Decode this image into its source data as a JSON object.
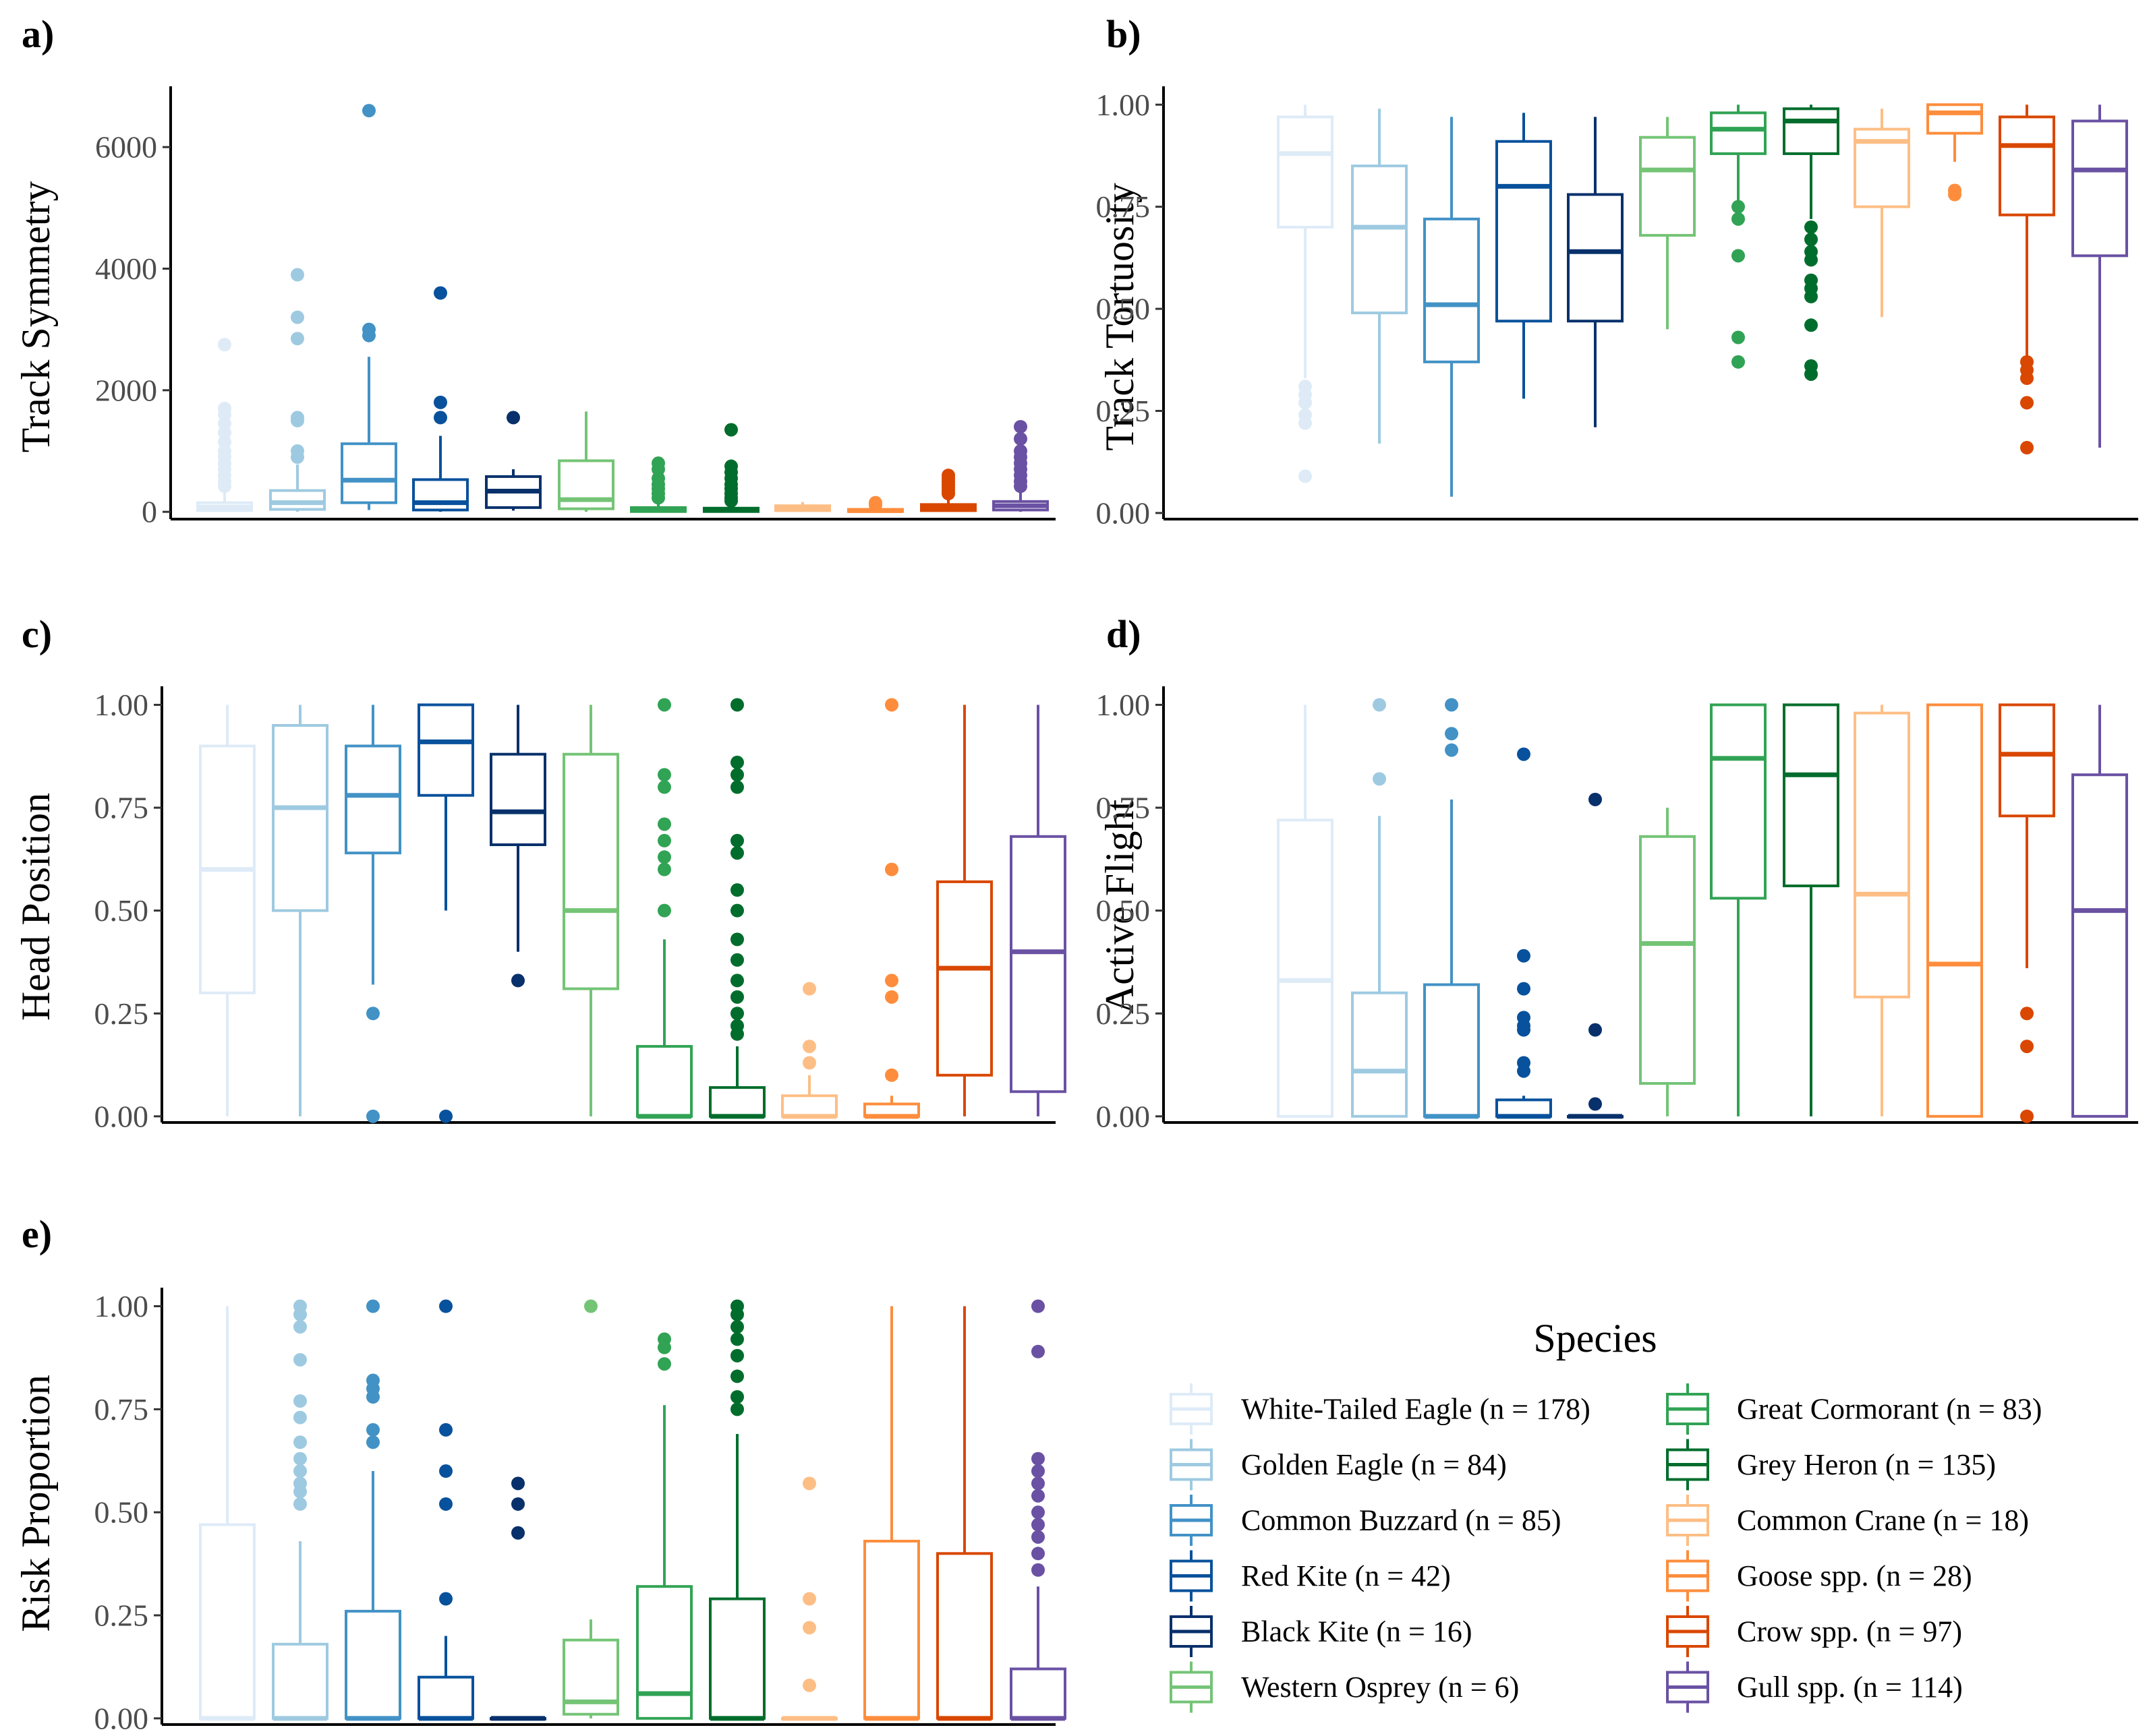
{
  "legend": {
    "title": "Species",
    "entries": [
      {
        "label": "White-Tailed Eagle (n = 178)",
        "color": "#deebf7"
      },
      {
        "label": "Golden Eagle (n = 84)",
        "color": "#9ecae1"
      },
      {
        "label": "Common Buzzard (n = 85)",
        "color": "#4292c6"
      },
      {
        "label": "Red Kite (n = 42)",
        "color": "#08519c"
      },
      {
        "label": "Black Kite (n = 16)",
        "color": "#08306b"
      },
      {
        "label": "Western Osprey (n = 6)",
        "color": "#74c476"
      },
      {
        "label": "Great Cormorant (n = 83)",
        "color": "#31a354"
      },
      {
        "label": "Grey Heron (n = 135)",
        "color": "#006d2c"
      },
      {
        "label": "Common Crane (n = 18)",
        "color": "#fdbe85"
      },
      {
        "label": "Goose spp. (n = 28)",
        "color": "#fd8d3c"
      },
      {
        "label": "Crow spp. (n = 97)",
        "color": "#d94701"
      },
      {
        "label": "Gull spp. (n = 114)",
        "color": "#6a51a3"
      }
    ]
  },
  "chart_data": [
    {
      "panel": "a)",
      "type": "box",
      "ylabel": "Track  Symmetry",
      "ylim": [
        -120,
        7000
      ],
      "yticks": [
        0,
        2000,
        4000,
        6000
      ],
      "ytick_labels": [
        "0",
        "2000",
        "4000",
        "6000"
      ],
      "boxes": [
        {
          "q1": 20,
          "median": 80,
          "q3": 150,
          "lo": 0,
          "hi": 330,
          "outliers": [
            2750,
            1700,
            1600,
            1450,
            1300,
            1150,
            1000,
            900,
            800,
            700,
            600,
            500,
            420
          ]
        },
        {
          "q1": 40,
          "median": 150,
          "q3": 350,
          "lo": 0,
          "hi": 780,
          "outliers": [
            3900,
            3200,
            2850,
            1550,
            1500,
            1000,
            900
          ]
        },
        {
          "q1": 150,
          "median": 520,
          "q3": 1120,
          "lo": 30,
          "hi": 2550,
          "outliers": [
            6600,
            3000,
            2900
          ]
        },
        {
          "q1": 30,
          "median": 150,
          "q3": 530,
          "lo": 0,
          "hi": 1250,
          "outliers": [
            3600,
            1800,
            1550
          ]
        },
        {
          "q1": 70,
          "median": 340,
          "q3": 580,
          "lo": 20,
          "hi": 700,
          "outliers": [
            1550
          ]
        },
        {
          "q1": 50,
          "median": 200,
          "q3": 840,
          "lo": 0,
          "hi": 1650,
          "outliers": []
        },
        {
          "q1": 5,
          "median": 30,
          "q3": 70,
          "lo": 0,
          "hi": 170,
          "outliers": [
            800,
            700,
            550,
            450,
            380,
            300,
            230
          ]
        },
        {
          "q1": 5,
          "median": 25,
          "q3": 60,
          "lo": 0,
          "hi": 150,
          "outliers": [
            1350,
            750,
            650,
            550,
            450,
            380,
            300,
            230,
            180
          ]
        },
        {
          "q1": 20,
          "median": 60,
          "q3": 100,
          "lo": 0,
          "hi": 160,
          "outliers": []
        },
        {
          "q1": 5,
          "median": 20,
          "q3": 40,
          "lo": 0,
          "hi": 80,
          "outliers": [
            150,
            110
          ]
        },
        {
          "q1": 20,
          "median": 70,
          "q3": 120,
          "lo": 0,
          "hi": 230,
          "outliers": [
            600,
            550,
            500,
            450,
            400,
            350,
            300
          ]
        },
        {
          "q1": 30,
          "median": 100,
          "q3": 170,
          "lo": 0,
          "hi": 350,
          "outliers": [
            1400,
            1200,
            1000,
            900,
            800,
            700,
            600,
            500,
            420
          ]
        }
      ]
    },
    {
      "panel": "b)",
      "type": "box",
      "ylabel": "Track  Tortuosity",
      "ylim": [
        -0.015,
        1.045
      ],
      "yticks": [
        0,
        0.25,
        0.5,
        0.75,
        1
      ],
      "ytick_labels": [
        "0.00",
        "0.25",
        "0.50",
        "0.75",
        "1.00"
      ],
      "boxes": [
        {
          "q1": 0.7,
          "median": 0.88,
          "q3": 0.97,
          "lo": 0.33,
          "hi": 1.0,
          "outliers": [
            0.31,
            0.29,
            0.27,
            0.24,
            0.22,
            0.09
          ]
        },
        {
          "q1": 0.49,
          "median": 0.7,
          "q3": 0.85,
          "lo": 0.17,
          "hi": 0.99,
          "outliers": []
        },
        {
          "q1": 0.37,
          "median": 0.51,
          "q3": 0.72,
          "lo": 0.04,
          "hi": 0.97,
          "outliers": []
        },
        {
          "q1": 0.47,
          "median": 0.8,
          "q3": 0.91,
          "lo": 0.28,
          "hi": 0.98,
          "outliers": []
        },
        {
          "q1": 0.47,
          "median": 0.64,
          "q3": 0.78,
          "lo": 0.21,
          "hi": 0.97,
          "outliers": []
        },
        {
          "q1": 0.68,
          "median": 0.84,
          "q3": 0.92,
          "lo": 0.45,
          "hi": 0.97,
          "outliers": []
        },
        {
          "q1": 0.88,
          "median": 0.94,
          "q3": 0.98,
          "lo": 0.76,
          "hi": 1.0,
          "outliers": [
            0.75,
            0.72,
            0.63,
            0.43,
            0.37
          ]
        },
        {
          "q1": 0.88,
          "median": 0.96,
          "q3": 0.99,
          "lo": 0.72,
          "hi": 1.0,
          "outliers": [
            0.7,
            0.67,
            0.64,
            0.62,
            0.57,
            0.55,
            0.53,
            0.46,
            0.36,
            0.34
          ]
        },
        {
          "q1": 0.75,
          "median": 0.91,
          "q3": 0.94,
          "lo": 0.48,
          "hi": 0.99,
          "outliers": []
        },
        {
          "q1": 0.93,
          "median": 0.98,
          "q3": 1.0,
          "lo": 0.86,
          "hi": 1.0,
          "outliers": [
            0.79,
            0.78
          ]
        },
        {
          "q1": 0.73,
          "median": 0.9,
          "q3": 0.97,
          "lo": 0.38,
          "hi": 1.0,
          "outliers": [
            0.37,
            0.35,
            0.33,
            0.27,
            0.16
          ]
        },
        {
          "q1": 0.63,
          "median": 0.84,
          "q3": 0.96,
          "lo": 0.16,
          "hi": 1.0,
          "outliers": []
        }
      ]
    },
    {
      "panel": "c)",
      "type": "box",
      "ylabel": "Head  Position",
      "ylim": [
        -0.015,
        1.045
      ],
      "yticks": [
        0,
        0.25,
        0.5,
        0.75,
        1
      ],
      "ytick_labels": [
        "0.00",
        "0.25",
        "0.50",
        "0.75",
        "1.00"
      ],
      "boxes": [
        {
          "q1": 0.3,
          "median": 0.6,
          "q3": 0.9,
          "lo": 0.0,
          "hi": 1.0,
          "outliers": []
        },
        {
          "q1": 0.5,
          "median": 0.75,
          "q3": 0.95,
          "lo": 0.0,
          "hi": 1.0,
          "outliers": []
        },
        {
          "q1": 0.64,
          "median": 0.78,
          "q3": 0.9,
          "lo": 0.32,
          "hi": 1.0,
          "outliers": [
            0.25,
            0.0
          ]
        },
        {
          "q1": 0.78,
          "median": 0.91,
          "q3": 1.0,
          "lo": 0.5,
          "hi": 1.0,
          "outliers": [
            0.0
          ]
        },
        {
          "q1": 0.66,
          "median": 0.74,
          "q3": 0.88,
          "lo": 0.4,
          "hi": 1.0,
          "outliers": [
            0.33
          ]
        },
        {
          "q1": 0.31,
          "median": 0.5,
          "q3": 0.88,
          "lo": 0.0,
          "hi": 1.0,
          "outliers": []
        },
        {
          "q1": 0.0,
          "median": 0.0,
          "q3": 0.17,
          "lo": 0.0,
          "hi": 0.43,
          "outliers": [
            1.0,
            0.83,
            0.8,
            0.71,
            0.67,
            0.63,
            0.6,
            0.5
          ]
        },
        {
          "q1": 0.0,
          "median": 0.0,
          "q3": 0.07,
          "lo": 0.0,
          "hi": 0.17,
          "outliers": [
            1.0,
            0.86,
            0.83,
            0.8,
            0.67,
            0.64,
            0.55,
            0.5,
            0.43,
            0.38,
            0.33,
            0.29,
            0.25,
            0.22,
            0.2
          ]
        },
        {
          "q1": 0.0,
          "median": 0.0,
          "q3": 0.05,
          "lo": 0.0,
          "hi": 0.1,
          "outliers": [
            0.31,
            0.17,
            0.13
          ]
        },
        {
          "q1": 0.0,
          "median": 0.0,
          "q3": 0.03,
          "lo": 0.0,
          "hi": 0.05,
          "outliers": [
            1.0,
            0.6,
            0.33,
            0.29,
            0.1
          ]
        },
        {
          "q1": 0.1,
          "median": 0.36,
          "q3": 0.57,
          "lo": 0.0,
          "hi": 1.0,
          "outliers": []
        },
        {
          "q1": 0.06,
          "median": 0.4,
          "q3": 0.68,
          "lo": 0.0,
          "hi": 1.0,
          "outliers": []
        }
      ]
    },
    {
      "panel": "d)",
      "type": "box",
      "ylabel": "Active  Flight",
      "ylim": [
        -0.015,
        1.045
      ],
      "yticks": [
        0,
        0.25,
        0.5,
        0.75,
        1
      ],
      "ytick_labels": [
        "0.00",
        "0.25",
        "0.50",
        "0.75",
        "1.00"
      ],
      "boxes": [
        {
          "q1": 0.0,
          "median": 0.33,
          "q3": 0.72,
          "lo": 0.0,
          "hi": 1.0,
          "outliers": []
        },
        {
          "q1": 0.0,
          "median": 0.11,
          "q3": 0.3,
          "lo": 0.0,
          "hi": 0.73,
          "outliers": [
            1.0,
            0.82
          ]
        },
        {
          "q1": 0.0,
          "median": 0.0,
          "q3": 0.32,
          "lo": 0.0,
          "hi": 0.77,
          "outliers": [
            1.0,
            0.93,
            0.89
          ]
        },
        {
          "q1": 0.0,
          "median": 0.0,
          "q3": 0.04,
          "lo": 0.0,
          "hi": 0.05,
          "outliers": [
            0.88,
            0.39,
            0.31,
            0.24,
            0.22,
            0.21,
            0.13,
            0.11
          ]
        },
        {
          "q1": 0.0,
          "median": 0.0,
          "q3": 0.0,
          "lo": 0.0,
          "hi": 0.0,
          "outliers": [
            0.77,
            0.21,
            0.03
          ]
        },
        {
          "q1": 0.08,
          "median": 0.42,
          "q3": 0.68,
          "lo": 0.0,
          "hi": 0.75,
          "outliers": []
        },
        {
          "q1": 0.53,
          "median": 0.87,
          "q3": 1.0,
          "lo": 0.0,
          "hi": 1.0,
          "outliers": []
        },
        {
          "q1": 0.56,
          "median": 0.83,
          "q3": 1.0,
          "lo": 0.0,
          "hi": 1.0,
          "outliers": []
        },
        {
          "q1": 0.29,
          "median": 0.54,
          "q3": 0.98,
          "lo": 0.0,
          "hi": 1.0,
          "outliers": []
        },
        {
          "q1": 0.0,
          "median": 0.37,
          "q3": 1.0,
          "lo": 0.0,
          "hi": 1.0,
          "outliers": []
        },
        {
          "q1": 0.73,
          "median": 0.88,
          "q3": 1.0,
          "lo": 0.36,
          "hi": 1.0,
          "outliers": [
            0.25,
            0.17,
            0.0
          ]
        },
        {
          "q1": 0.0,
          "median": 0.5,
          "q3": 0.83,
          "lo": 0.0,
          "hi": 1.0,
          "outliers": []
        }
      ]
    },
    {
      "panel": "e)",
      "type": "box",
      "ylabel": "Risk  Proportion",
      "ylim": [
        -0.015,
        1.045
      ],
      "yticks": [
        0,
        0.25,
        0.5,
        0.75,
        1
      ],
      "ytick_labels": [
        "0.00",
        "0.25",
        "0.50",
        "0.75",
        "1.00"
      ],
      "boxes": [
        {
          "q1": 0.0,
          "median": 0.0,
          "q3": 0.47,
          "lo": 0.0,
          "hi": 1.0,
          "outliers": []
        },
        {
          "q1": 0.0,
          "median": 0.0,
          "q3": 0.18,
          "lo": 0.0,
          "hi": 0.43,
          "outliers": [
            1.0,
            0.98,
            0.95,
            0.87,
            0.77,
            0.73,
            0.67,
            0.63,
            0.6,
            0.57,
            0.55,
            0.52
          ]
        },
        {
          "q1": 0.0,
          "median": 0.0,
          "q3": 0.26,
          "lo": 0.0,
          "hi": 0.6,
          "outliers": [
            1.0,
            0.82,
            0.8,
            0.78,
            0.7,
            0.67
          ]
        },
        {
          "q1": 0.0,
          "median": 0.0,
          "q3": 0.1,
          "lo": 0.0,
          "hi": 0.2,
          "outliers": [
            1.0,
            0.7,
            0.6,
            0.52,
            0.29
          ]
        },
        {
          "q1": 0.0,
          "median": 0.0,
          "q3": 0.0,
          "lo": 0.0,
          "hi": 0.0,
          "outliers": [
            0.57,
            0.52,
            0.45
          ]
        },
        {
          "q1": 0.01,
          "median": 0.04,
          "q3": 0.19,
          "lo": 0.0,
          "hi": 0.24,
          "outliers": [
            1.0
          ]
        },
        {
          "q1": 0.0,
          "median": 0.06,
          "q3": 0.32,
          "lo": 0.0,
          "hi": 0.76,
          "outliers": [
            0.92,
            0.9,
            0.86
          ]
        },
        {
          "q1": 0.0,
          "median": 0.0,
          "q3": 0.29,
          "lo": 0.0,
          "hi": 0.69,
          "outliers": [
            1.0,
            0.98,
            0.95,
            0.92,
            0.88,
            0.83,
            0.78,
            0.75
          ]
        },
        {
          "q1": 0.0,
          "median": 0.0,
          "q3": 0.0,
          "lo": 0.0,
          "hi": 0.0,
          "outliers": [
            0.57,
            0.29,
            0.22,
            0.08
          ]
        },
        {
          "q1": 0.0,
          "median": 0.0,
          "q3": 0.43,
          "lo": 0.0,
          "hi": 1.0,
          "outliers": []
        },
        {
          "q1": 0.0,
          "median": 0.0,
          "q3": 0.4,
          "lo": 0.0,
          "hi": 1.0,
          "outliers": []
        },
        {
          "q1": 0.0,
          "median": 0.0,
          "q3": 0.12,
          "lo": 0.0,
          "hi": 0.32,
          "outliers": [
            1.0,
            0.89,
            0.63,
            0.6,
            0.57,
            0.54,
            0.5,
            0.47,
            0.44,
            0.4,
            0.36
          ]
        }
      ]
    }
  ]
}
